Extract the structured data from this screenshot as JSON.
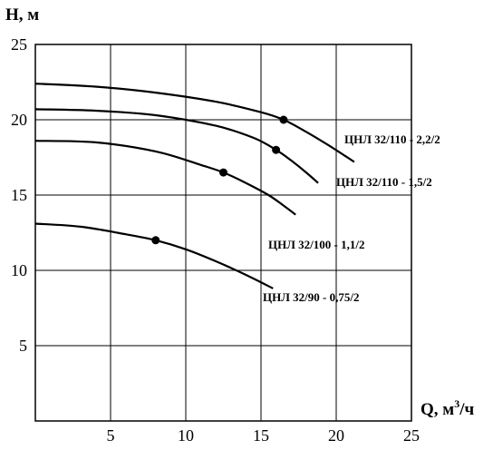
{
  "chart_data": {
    "type": "line",
    "xlabel": "Q, м",
    "xlabel_sup": "3",
    "xlabel_suffix": "/ч",
    "ylabel": "H, м",
    "xlim": [
      0,
      25
    ],
    "ylim": [
      0,
      25
    ],
    "xticks": [
      "5",
      "10",
      "15",
      "20",
      "25"
    ],
    "yticks": [
      "5",
      "10",
      "15",
      "20",
      "25"
    ],
    "grid": true,
    "series": [
      {
        "name": "ЦНЛ 32/110 - 2,2/2",
        "x": [
          0,
          4,
          8,
          12,
          15,
          16.5,
          18,
          19.5,
          21.2
        ],
        "y": [
          22.4,
          22.2,
          21.8,
          21.2,
          20.5,
          20.0,
          19.2,
          18.3,
          17.2
        ],
        "marker": {
          "x": 16.5,
          "y": 20.0
        }
      },
      {
        "name": "ЦНЛ 32/110 - 1,5/2",
        "x": [
          0,
          4,
          8,
          12,
          14.5,
          16,
          17,
          18,
          18.8
        ],
        "y": [
          20.7,
          20.6,
          20.3,
          19.6,
          18.8,
          18.0,
          17.3,
          16.5,
          15.8
        ],
        "marker": {
          "x": 16.0,
          "y": 18.0
        }
      },
      {
        "name": "ЦНЛ 32/100 - 1,1/2",
        "x": [
          0,
          4,
          8,
          11,
          12.5,
          14,
          15.5,
          16.5,
          17.3
        ],
        "y": [
          18.6,
          18.5,
          17.9,
          17.0,
          16.5,
          15.8,
          15.0,
          14.3,
          13.7
        ],
        "marker": {
          "x": 12.5,
          "y": 16.5
        }
      },
      {
        "name": "ЦНЛ 32/90 - 0,75/2",
        "x": [
          0,
          3,
          6,
          8,
          10,
          12,
          14,
          15.8
        ],
        "y": [
          13.1,
          12.9,
          12.4,
          12.0,
          11.4,
          10.6,
          9.7,
          8.8
        ],
        "marker": {
          "x": 8.0,
          "y": 12.0
        }
      }
    ]
  }
}
